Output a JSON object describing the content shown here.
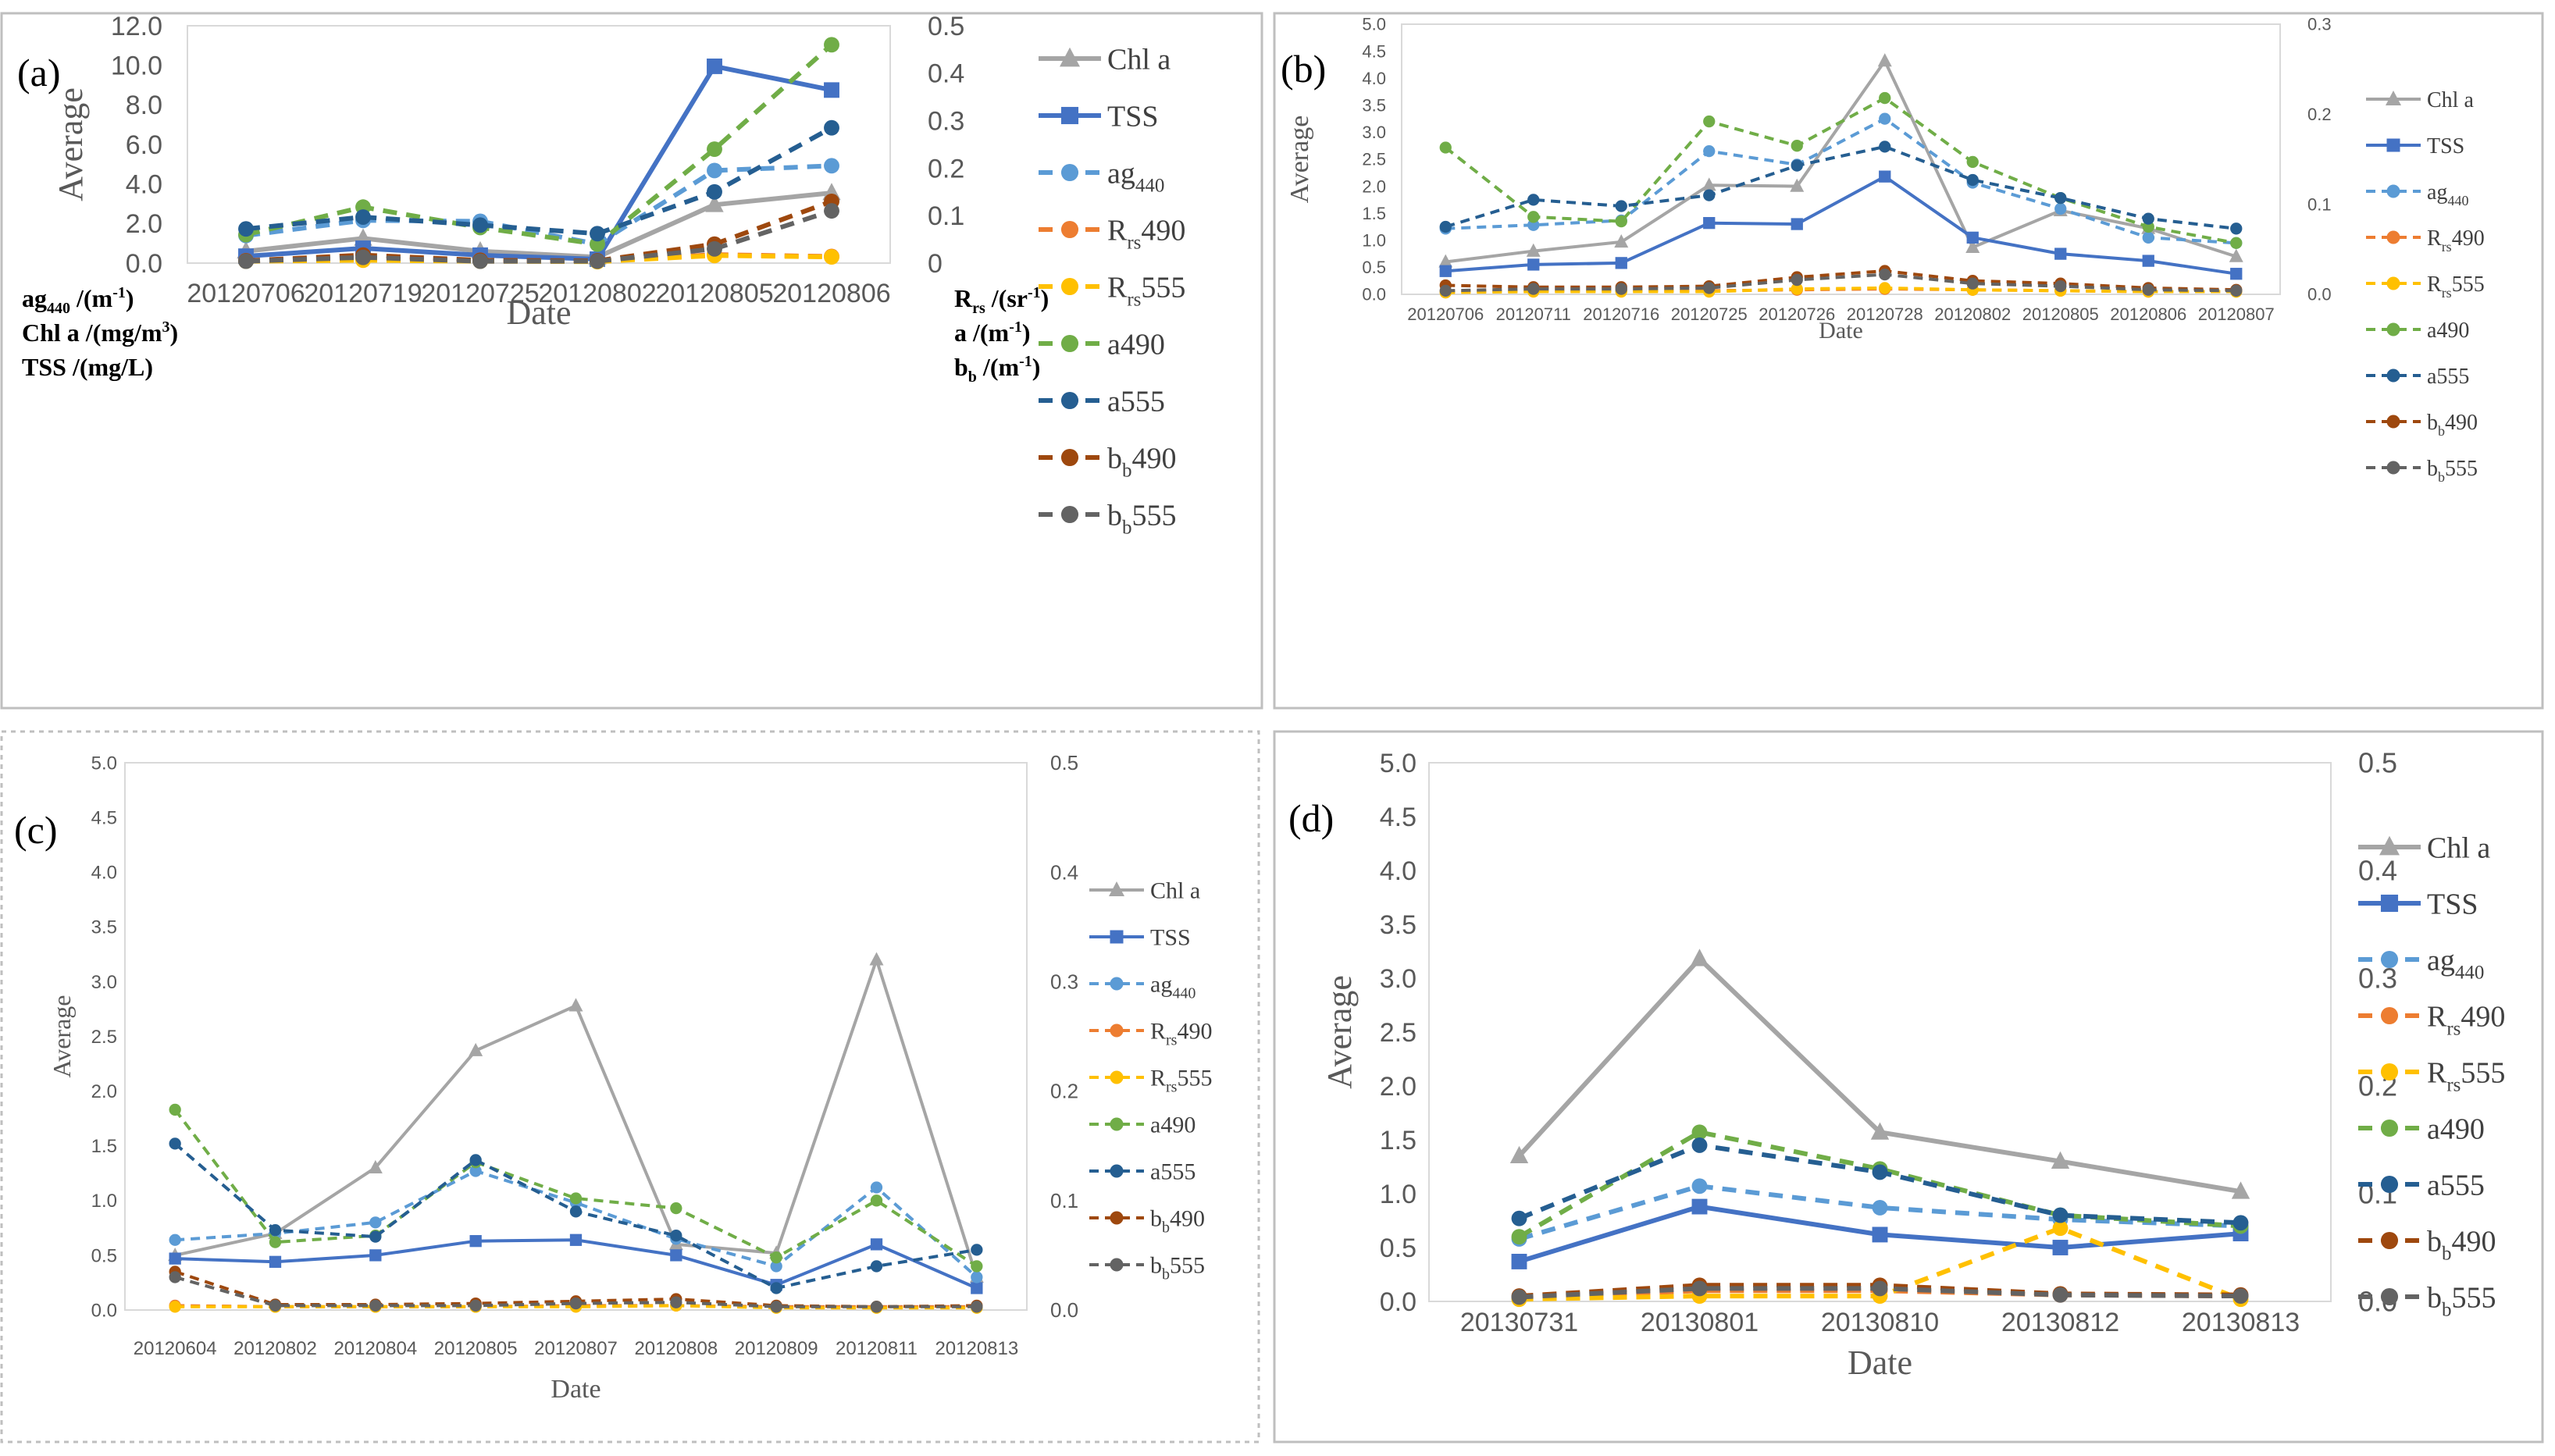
{
  "colors": {
    "chl": "#a5a5a5",
    "tss": "#4472c4",
    "ag440": "#5b9bd5",
    "rrs490": "#ed7d31",
    "rrs555": "#ffc000",
    "a490": "#70ad47",
    "a555": "#255e91",
    "bb490": "#9e480e",
    "bb555": "#636363"
  },
  "chart_data": [
    {
      "type": "line",
      "panel_label": "(a)",
      "xlabel": "Date",
      "ylabel": "Average",
      "categories": [
        "20120706",
        "20120719",
        "20120725",
        "20120802",
        "20120805",
        "20120806"
      ],
      "ylim_left": [
        0,
        12
      ],
      "yticks_left": [
        "0.0",
        "2.0",
        "4.0",
        "6.0",
        "8.0",
        "10.0",
        "12.0"
      ],
      "ylim_right": [
        0,
        0.5
      ],
      "yticks_right": [
        "0",
        "0.1",
        "0.2",
        "0.3",
        "0.4",
        "0.5"
      ],
      "left_units": [
        "ag440 /(m-1)",
        "Chl a /(mg/m3)",
        "TSS /(mg/L)"
      ],
      "right_units": [
        "Rrs /(sr-1)",
        "a /(m-1)",
        "bb /(m-1)"
      ],
      "series": [
        {
          "key": "chl",
          "name": "Chl a",
          "axis": "left",
          "values": [
            0.6,
            1.25,
            0.6,
            0.3,
            2.95,
            3.55
          ]
        },
        {
          "key": "tss",
          "name": "TSS",
          "axis": "left",
          "values": [
            0.35,
            0.75,
            0.4,
            0.2,
            9.95,
            8.75
          ]
        },
        {
          "key": "ag440",
          "name": "ag440",
          "axis": "right",
          "values": [
            0.058,
            0.09,
            0.088,
            0.04,
            0.195,
            0.205
          ]
        },
        {
          "key": "rrs490",
          "name": "Rrs490",
          "axis": "right",
          "values": [
            0.005,
            0.008,
            0.006,
            0.004,
            0.018,
            0.014
          ]
        },
        {
          "key": "rrs555",
          "name": "Rrs555",
          "axis": "right",
          "values": [
            0.004,
            0.006,
            0.004,
            0.003,
            0.016,
            0.013
          ]
        },
        {
          "key": "a490",
          "name": "a490",
          "axis": "right",
          "values": [
            0.06,
            0.118,
            0.075,
            0.04,
            0.24,
            0.46
          ]
        },
        {
          "key": "a555",
          "name": "a555",
          "axis": "right",
          "values": [
            0.072,
            0.097,
            0.08,
            0.062,
            0.15,
            0.285
          ]
        },
        {
          "key": "bb490",
          "name": "bb490",
          "axis": "right",
          "values": [
            0.005,
            0.017,
            0.006,
            0.005,
            0.04,
            0.13
          ]
        },
        {
          "key": "bb555",
          "name": "bb555",
          "axis": "right",
          "values": [
            0.004,
            0.012,
            0.004,
            0.004,
            0.03,
            0.11
          ]
        }
      ]
    },
    {
      "type": "line",
      "panel_label": "(b)",
      "xlabel": "Date",
      "ylabel": "Average",
      "categories": [
        "20120706",
        "20120711",
        "20120716",
        "20120725",
        "20120726",
        "20120728",
        "20120802",
        "20120805",
        "20120806",
        "20120807"
      ],
      "ylim_left": [
        0,
        5
      ],
      "yticks_left": [
        "0.0",
        "0.5",
        "1.0",
        "1.5",
        "2.0",
        "2.5",
        "3.0",
        "3.5",
        "4.0",
        "4.5",
        "5.0"
      ],
      "ylim_right": [
        0,
        0.3
      ],
      "yticks_right": [
        "0.0",
        "0.1",
        "0.2",
        "0.3"
      ],
      "series": [
        {
          "key": "chl",
          "name": "Chl a",
          "axis": "left",
          "values": [
            0.6,
            0.8,
            0.97,
            2.02,
            2.0,
            4.32,
            0.87,
            1.55,
            1.22,
            0.7
          ]
        },
        {
          "key": "tss",
          "name": "TSS",
          "axis": "left",
          "values": [
            0.43,
            0.55,
            0.58,
            1.32,
            1.3,
            2.18,
            1.05,
            0.75,
            0.62,
            0.38
          ]
        },
        {
          "key": "ag440",
          "name": "ag440",
          "axis": "right",
          "values": [
            0.073,
            0.077,
            0.082,
            0.159,
            0.144,
            0.195,
            0.124,
            0.095,
            0.063,
            0.057
          ]
        },
        {
          "key": "rrs490",
          "name": "Rrs490",
          "axis": "right",
          "values": [
            0.003,
            0.004,
            0.004,
            0.004,
            0.005,
            0.006,
            0.005,
            0.004,
            0.003,
            0.003
          ]
        },
        {
          "key": "rrs555",
          "name": "Rrs555",
          "axis": "right",
          "values": [
            0.002,
            0.003,
            0.003,
            0.003,
            0.006,
            0.007,
            0.005,
            0.004,
            0.003,
            0.003
          ]
        },
        {
          "key": "a490",
          "name": "a490",
          "axis": "right",
          "values": [
            0.163,
            0.086,
            0.081,
            0.192,
            0.165,
            0.218,
            0.147,
            0.107,
            0.075,
            0.057
          ]
        },
        {
          "key": "a555",
          "name": "a555",
          "axis": "right",
          "values": [
            0.075,
            0.105,
            0.098,
            0.11,
            0.143,
            0.164,
            0.127,
            0.107,
            0.084,
            0.073
          ]
        },
        {
          "key": "bb490",
          "name": "bb490",
          "axis": "right",
          "values": [
            0.01,
            0.008,
            0.008,
            0.009,
            0.019,
            0.026,
            0.015,
            0.012,
            0.007,
            0.005
          ]
        },
        {
          "key": "bb555",
          "name": "bb555",
          "axis": "right",
          "values": [
            0.004,
            0.006,
            0.006,
            0.007,
            0.016,
            0.022,
            0.012,
            0.009,
            0.005,
            0.004
          ]
        }
      ]
    },
    {
      "type": "line",
      "panel_label": "(c)",
      "xlabel": "Date",
      "ylabel": "Average",
      "categories": [
        "20120604",
        "20120802",
        "20120804",
        "20120805",
        "20120807",
        "20120808",
        "20120809",
        "20120811",
        "20120813"
      ],
      "ylim_left": [
        0,
        5
      ],
      "yticks_left": [
        "0.0",
        "0.5",
        "1.0",
        "1.5",
        "2.0",
        "2.5",
        "3.0",
        "3.5",
        "4.0",
        "4.5",
        "5.0"
      ],
      "ylim_right": [
        0,
        0.5
      ],
      "yticks_right": [
        "0.0",
        "0.1",
        "0.2",
        "0.3",
        "0.4",
        "0.5"
      ],
      "series": [
        {
          "key": "chl",
          "name": "Chl a",
          "axis": "left",
          "values": [
            0.5,
            0.7,
            1.3,
            2.37,
            2.78,
            0.6,
            0.52,
            3.2,
            0.3
          ]
        },
        {
          "key": "tss",
          "name": "TSS",
          "axis": "left",
          "values": [
            0.47,
            0.44,
            0.5,
            0.63,
            0.64,
            0.5,
            0.23,
            0.6,
            0.2
          ]
        },
        {
          "key": "ag440",
          "name": "ag440",
          "axis": "right",
          "values": [
            0.064,
            0.07,
            0.08,
            0.127,
            0.098,
            0.065,
            0.04,
            0.112,
            0.03
          ]
        },
        {
          "key": "rrs490",
          "name": "Rrs490",
          "axis": "right",
          "values": [
            0.004,
            0.003,
            0.003,
            0.003,
            0.004,
            0.004,
            0.003,
            0.003,
            0.003
          ]
        },
        {
          "key": "rrs555",
          "name": "Rrs555",
          "axis": "right",
          "values": [
            0.003,
            0.003,
            0.003,
            0.003,
            0.003,
            0.004,
            0.002,
            0.002,
            0.002
          ]
        },
        {
          "key": "a490",
          "name": "a490",
          "axis": "right",
          "values": [
            0.183,
            0.062,
            0.068,
            0.135,
            0.102,
            0.093,
            0.048,
            0.1,
            0.04
          ]
        },
        {
          "key": "a555",
          "name": "a555",
          "axis": "right",
          "values": [
            0.152,
            0.073,
            0.067,
            0.137,
            0.09,
            0.068,
            0.02,
            0.04,
            0.055
          ]
        },
        {
          "key": "bb490",
          "name": "bb490",
          "axis": "right",
          "values": [
            0.035,
            0.005,
            0.005,
            0.006,
            0.008,
            0.01,
            0.004,
            0.003,
            0.004
          ]
        },
        {
          "key": "bb555",
          "name": "bb555",
          "axis": "right",
          "values": [
            0.03,
            0.004,
            0.004,
            0.004,
            0.006,
            0.007,
            0.003,
            0.003,
            0.003
          ]
        }
      ]
    },
    {
      "type": "line",
      "panel_label": "(d)",
      "xlabel": "Date",
      "ylabel": "Average",
      "categories": [
        "20130731",
        "20130801",
        "20130810",
        "20130812",
        "20130813"
      ],
      "ylim_left": [
        0,
        5
      ],
      "yticks_left": [
        "0.0",
        "0.5",
        "1.0",
        "1.5",
        "2.0",
        "2.5",
        "3.0",
        "3.5",
        "4.0",
        "4.5",
        "5.0"
      ],
      "ylim_right": [
        0,
        0.5
      ],
      "yticks_right": [
        "0.0",
        "0.1",
        "0.2",
        "0.3",
        "0.4",
        "0.5"
      ],
      "series": [
        {
          "key": "chl",
          "name": "Chl a",
          "axis": "left",
          "values": [
            1.35,
            3.18,
            1.57,
            1.3,
            1.02
          ]
        },
        {
          "key": "tss",
          "name": "TSS",
          "axis": "left",
          "values": [
            0.37,
            0.88,
            0.62,
            0.5,
            0.63
          ]
        },
        {
          "key": "ag440",
          "name": "ag440",
          "axis": "right",
          "values": [
            0.058,
            0.107,
            0.087,
            0.076,
            0.07
          ]
        },
        {
          "key": "rrs490",
          "name": "Rrs490",
          "axis": "right",
          "values": [
            0.003,
            0.01,
            0.01,
            0.006,
            0.005
          ]
        },
        {
          "key": "rrs555",
          "name": "Rrs555",
          "axis": "right",
          "values": [
            0.002,
            0.005,
            0.005,
            0.068,
            0.002
          ]
        },
        {
          "key": "a490",
          "name": "a490",
          "axis": "right",
          "values": [
            0.06,
            0.157,
            0.123,
            0.08,
            0.07
          ]
        },
        {
          "key": "a555",
          "name": "a555",
          "axis": "right",
          "values": [
            0.077,
            0.145,
            0.12,
            0.08,
            0.073
          ]
        },
        {
          "key": "bb490",
          "name": "bb490",
          "axis": "right",
          "values": [
            0.005,
            0.015,
            0.015,
            0.007,
            0.006
          ]
        },
        {
          "key": "bb555",
          "name": "bb555",
          "axis": "right",
          "values": [
            0.004,
            0.012,
            0.012,
            0.006,
            0.005
          ]
        }
      ]
    }
  ]
}
